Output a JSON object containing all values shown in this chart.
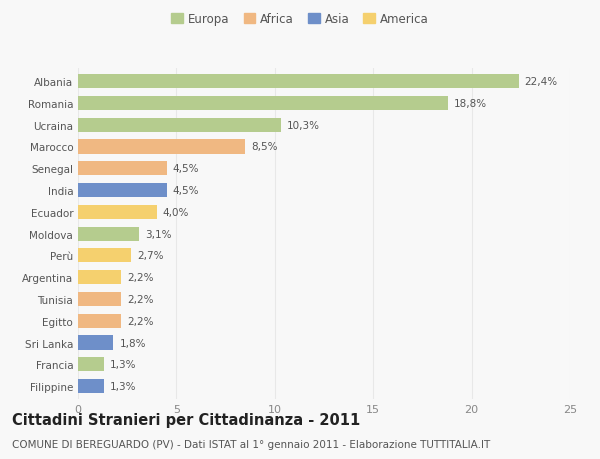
{
  "countries": [
    "Albania",
    "Romania",
    "Ucraina",
    "Marocco",
    "Senegal",
    "India",
    "Ecuador",
    "Moldova",
    "Perù",
    "Argentina",
    "Tunisia",
    "Egitto",
    "Sri Lanka",
    "Francia",
    "Filippine"
  ],
  "values": [
    22.4,
    18.8,
    10.3,
    8.5,
    4.5,
    4.5,
    4.0,
    3.1,
    2.7,
    2.2,
    2.2,
    2.2,
    1.8,
    1.3,
    1.3
  ],
  "labels": [
    "22,4%",
    "18,8%",
    "10,3%",
    "8,5%",
    "4,5%",
    "4,5%",
    "4,0%",
    "3,1%",
    "2,7%",
    "2,2%",
    "2,2%",
    "2,2%",
    "1,8%",
    "1,3%",
    "1,3%"
  ],
  "colors": [
    "#b5cc8e",
    "#b5cc8e",
    "#b5cc8e",
    "#f0b882",
    "#f0b882",
    "#6e8fc9",
    "#f5d06e",
    "#b5cc8e",
    "#f5d06e",
    "#f5d06e",
    "#f0b882",
    "#f0b882",
    "#6e8fc9",
    "#b5cc8e",
    "#6e8fc9"
  ],
  "legend_labels": [
    "Europa",
    "Africa",
    "Asia",
    "America"
  ],
  "legend_colors": [
    "#b5cc8e",
    "#f0b882",
    "#6e8fc9",
    "#f5d06e"
  ],
  "title": "Cittadini Stranieri per Cittadinanza - 2011",
  "subtitle": "COMUNE DI BEREGUARDO (PV) - Dati ISTAT al 1° gennaio 2011 - Elaborazione TUTTITALIA.IT",
  "xlim": [
    0,
    25
  ],
  "xticks": [
    0,
    5,
    10,
    15,
    20,
    25
  ],
  "background_color": "#f8f8f8",
  "grid_color": "#e8e8e8",
  "bar_height": 0.65,
  "label_fontsize": 7.5,
  "title_fontsize": 10.5,
  "subtitle_fontsize": 7.5,
  "ytick_fontsize": 7.5,
  "xtick_fontsize": 8
}
